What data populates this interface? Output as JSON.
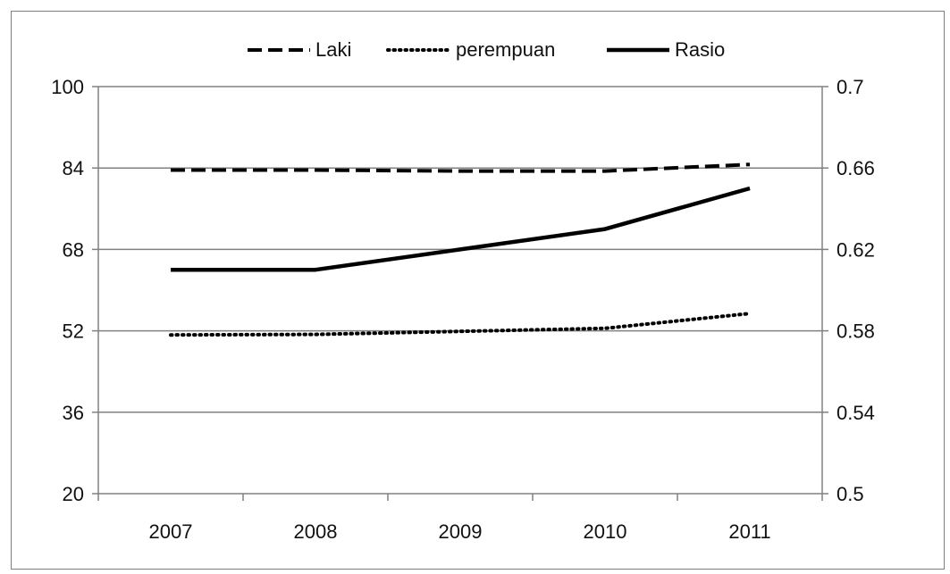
{
  "chart_data": {
    "type": "line",
    "title": "",
    "xlabel": "",
    "ylabel": "",
    "categories": [
      "2007",
      "2008",
      "2009",
      "2010",
      "2011"
    ],
    "y_left": {
      "min": 20,
      "max": 100,
      "ticks": [
        "20",
        "36",
        "52",
        "68",
        "84",
        "100"
      ]
    },
    "y_right": {
      "min": 0.5,
      "max": 0.7,
      "ticks": [
        "0.5",
        "0.54",
        "0.58",
        "0.62",
        "0.66",
        "0.7"
      ]
    },
    "grid": true,
    "legend_position": "top",
    "series": [
      {
        "name": "Laki",
        "axis": "left",
        "style": "dashed",
        "values": [
          83.6,
          83.6,
          83.4,
          83.4,
          84.7
        ]
      },
      {
        "name": "perempuan",
        "axis": "left",
        "style": "dotted",
        "values": [
          51.2,
          51.3,
          51.9,
          52.5,
          55.4
        ]
      },
      {
        "name": "Rasio",
        "axis": "right",
        "style": "solid",
        "values": [
          0.61,
          0.61,
          0.62,
          0.63,
          0.65
        ]
      }
    ],
    "colors": {
      "series": "#000000",
      "grid": "#808080",
      "axis": "#808080"
    }
  }
}
